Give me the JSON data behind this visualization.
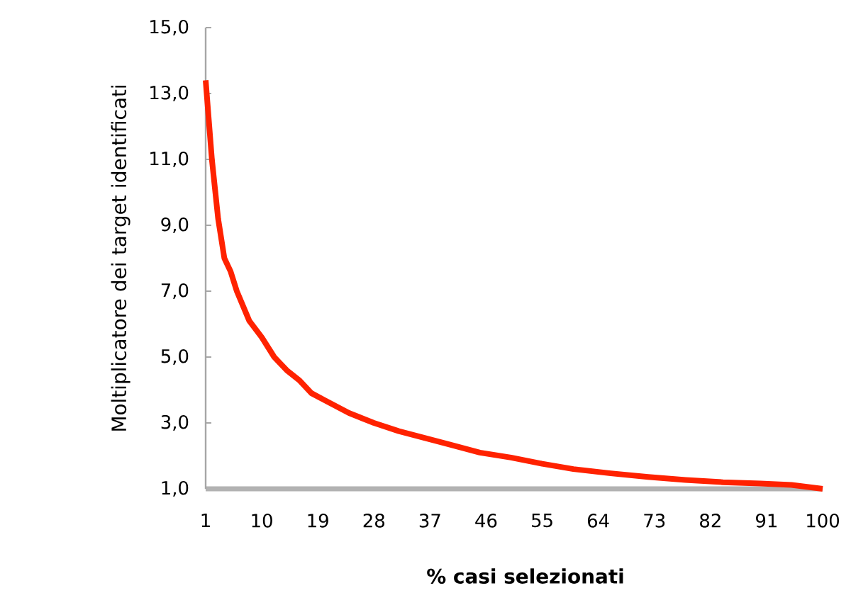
{
  "chart_data": {
    "type": "line",
    "xlabel": "% casi selezionati",
    "ylabel": "Moltiplicatore dei target identificati",
    "x": [
      1,
      2,
      3,
      4,
      5,
      6,
      8,
      10,
      12,
      14,
      16,
      18,
      20,
      24,
      28,
      32,
      36,
      40,
      45,
      50,
      55,
      60,
      66,
      72,
      78,
      84,
      90,
      95,
      100
    ],
    "series": [
      {
        "color": "#ff2200",
        "values": [
          13.4,
          11.0,
          9.2,
          8.0,
          7.6,
          7.0,
          6.1,
          5.6,
          5.0,
          4.6,
          4.3,
          3.9,
          3.7,
          3.3,
          3.0,
          2.75,
          2.55,
          2.35,
          2.1,
          1.95,
          1.76,
          1.6,
          1.47,
          1.36,
          1.27,
          1.2,
          1.16,
          1.12,
          1.0
        ]
      }
    ],
    "xlim": [
      1,
      100
    ],
    "xticks": [
      1,
      10,
      19,
      28,
      37,
      46,
      55,
      64,
      73,
      82,
      91,
      100
    ],
    "ylim": [
      1,
      15
    ],
    "yticks": [
      {
        "value": 1,
        "label": "1,0"
      },
      {
        "value": 3,
        "label": "3,0"
      },
      {
        "value": 5,
        "label": "5,0"
      },
      {
        "value": 7,
        "label": "7,0"
      },
      {
        "value": 9,
        "label": "9,0"
      },
      {
        "value": 11,
        "label": "11,0"
      },
      {
        "value": 13,
        "label": "13,0"
      },
      {
        "value": 15,
        "label": "15,0"
      }
    ],
    "grid": false,
    "marker": "none",
    "line_style": "solid"
  }
}
